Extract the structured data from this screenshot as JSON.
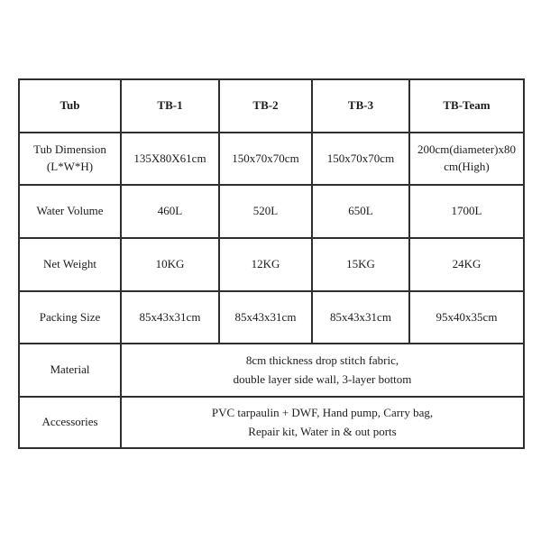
{
  "table": {
    "border_color": "#2e2e2e",
    "text_color": "#1c1c1c",
    "header": {
      "col0": "Tub",
      "col1": "TB-1",
      "col2": "TB-2",
      "col3": "TB-3",
      "col4": "TB-Team"
    },
    "rows": [
      {
        "label": "Tub Dimension (L*W*H)",
        "values": [
          "135X80X61cm",
          "150x70x70cm",
          "150x70x70cm",
          "200cm(diameter)x80cm(High)"
        ]
      },
      {
        "label": "Water Volume",
        "values": [
          "460L",
          "520L",
          "650L",
          "1700L"
        ]
      },
      {
        "label": "Net Weight",
        "values": [
          "10KG",
          "12KG",
          "15KG",
          "24KG"
        ]
      },
      {
        "label": "Packing Size",
        "values": [
          "85x43x31cm",
          "85x43x31cm",
          "85x43x31cm",
          "95x40x35cm"
        ]
      }
    ],
    "merged": [
      {
        "label": "Material",
        "lines": [
          "8cm thickness drop stitch fabric,",
          "double layer side wall, 3-layer bottom"
        ]
      },
      {
        "label": "Accessories",
        "lines": [
          "PVC tarpaulin + DWF, Hand pump, Carry bag,",
          "Repair kit, Water in & out ports"
        ]
      }
    ]
  }
}
